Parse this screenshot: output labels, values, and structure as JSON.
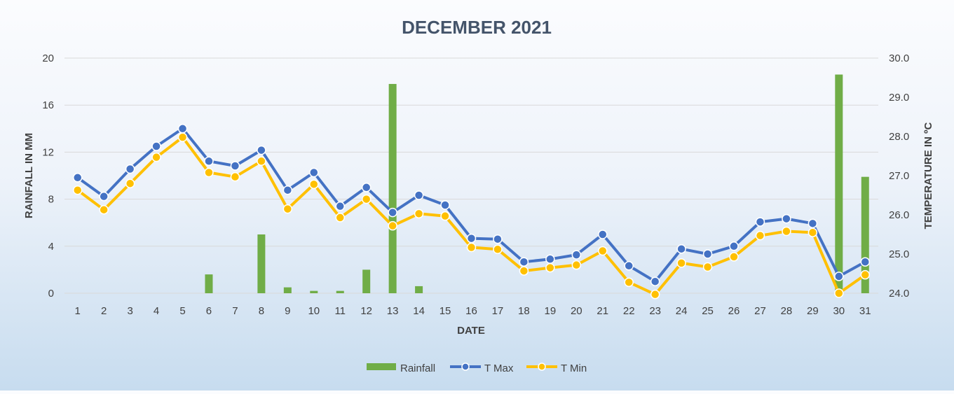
{
  "chart_data": {
    "type": "bar+line",
    "title": "DECEMBER 2021",
    "xlabel": "DATE",
    "ylabel": "RAINFALL IN MM",
    "y2label": "TEMPERATURE IN ºC",
    "categories": [
      "1",
      "2",
      "3",
      "4",
      "5",
      "6",
      "7",
      "8",
      "9",
      "10",
      "11",
      "12",
      "13",
      "14",
      "15",
      "16",
      "17",
      "18",
      "19",
      "20",
      "21",
      "22",
      "23",
      "24",
      "25",
      "26",
      "27",
      "28",
      "29",
      "30",
      "31"
    ],
    "ylim": [
      0,
      20
    ],
    "yticks": [
      "0",
      "4",
      "8",
      "12",
      "16",
      "20"
    ],
    "y2lim": [
      24.0,
      30.0
    ],
    "y2ticks": [
      "24.0",
      "25.0",
      "26.0",
      "27.0",
      "28.0",
      "29.0",
      "30.0"
    ],
    "grid": true,
    "legend": "bottom",
    "series": [
      {
        "name": "Rainfall",
        "type": "bar",
        "axis": "left",
        "color": "#70ad47",
        "values": [
          0,
          0,
          0,
          0,
          0,
          1.6,
          0,
          5.0,
          0.5,
          0.2,
          0.2,
          2.0,
          17.8,
          0.6,
          0,
          0,
          0,
          0,
          0,
          0,
          0,
          0,
          0,
          0,
          0,
          0,
          0,
          0,
          0,
          18.6,
          9.9
        ]
      },
      {
        "name": "T Max",
        "type": "line",
        "axis": "right",
        "color": "#4472c4",
        "values": [
          26.95,
          26.47,
          27.17,
          27.75,
          28.2,
          27.37,
          27.25,
          27.65,
          26.63,
          27.08,
          26.22,
          26.7,
          26.06,
          26.5,
          26.25,
          25.4,
          25.38,
          24.8,
          24.87,
          24.98,
          25.5,
          24.7,
          24.3,
          25.13,
          25.0,
          25.2,
          25.82,
          25.9,
          25.78,
          24.43,
          24.8
        ]
      },
      {
        "name": "T Min",
        "type": "line",
        "axis": "right",
        "color": "#ffc000",
        "values": [
          26.63,
          26.13,
          26.8,
          27.47,
          27.98,
          27.08,
          26.97,
          27.37,
          26.15,
          26.78,
          25.93,
          26.4,
          25.72,
          26.03,
          25.97,
          25.17,
          25.12,
          24.57,
          24.65,
          24.72,
          25.08,
          24.28,
          23.97,
          24.77,
          24.67,
          24.93,
          25.47,
          25.58,
          25.55,
          24.0,
          24.47
        ]
      }
    ]
  }
}
